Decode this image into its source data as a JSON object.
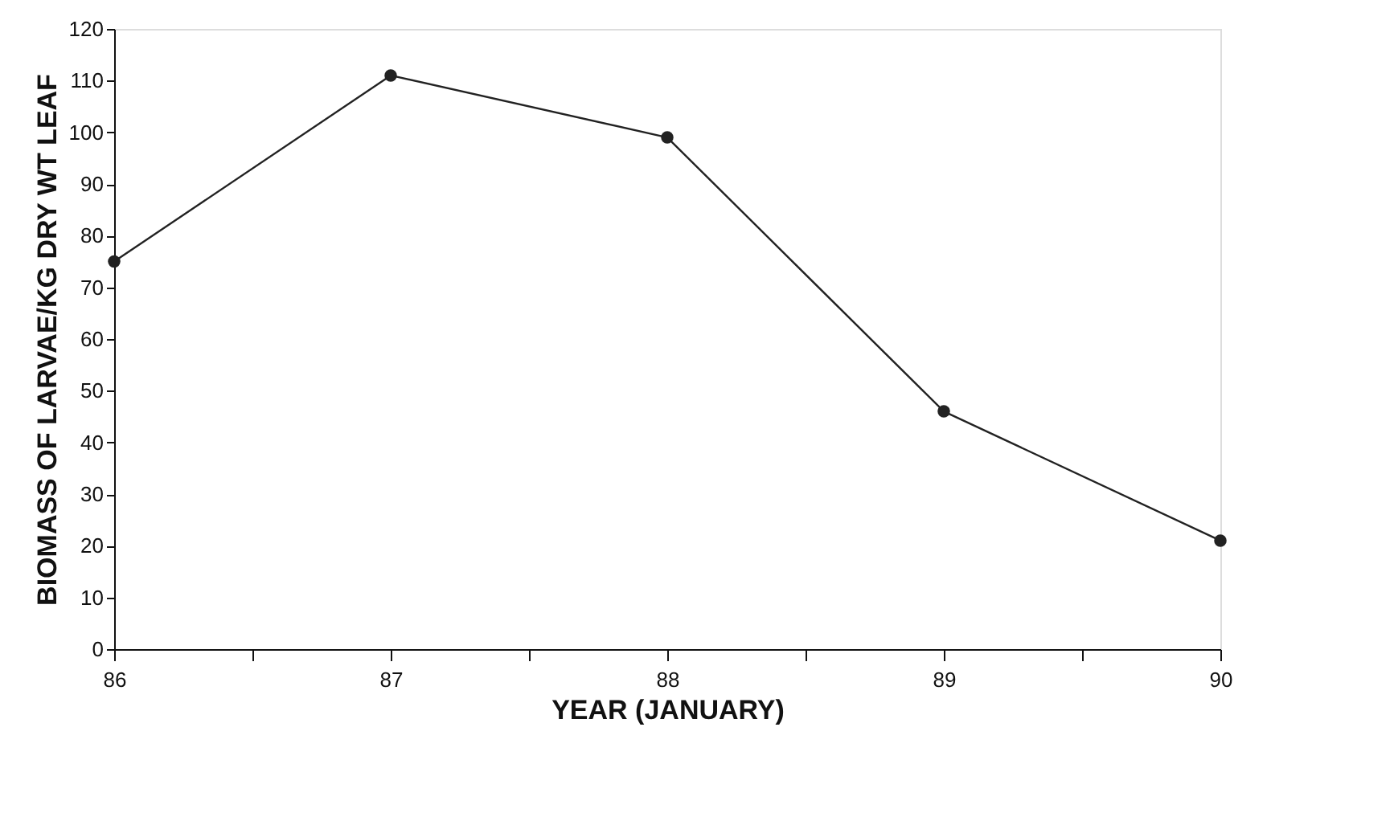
{
  "chart_data": {
    "type": "line",
    "xlabel": "YEAR (JANUARY)",
    "ylabel": "BIOMASS OF LARVAE/KG DRY WT LEAF",
    "x": [
      86,
      87,
      88,
      89,
      90
    ],
    "series": [
      {
        "color": "#222222",
        "values": [
          75,
          111,
          99,
          46,
          21
        ]
      }
    ],
    "xlim": [
      86,
      90
    ],
    "xticks": [
      86,
      {
        "value": 86.5,
        "label": null
      },
      87,
      {
        "value": 87.5,
        "label": null
      },
      88,
      {
        "value": 88.5,
        "label": null
      },
      89,
      {
        "value": 89.5,
        "label": null
      },
      90
    ],
    "ylim": [
      0,
      120
    ],
    "yticks": [
      0,
      10,
      20,
      30,
      40,
      50,
      60,
      70,
      80,
      90,
      100,
      110,
      120
    ],
    "grid": false,
    "legend": false,
    "marker": "circle",
    "line_style": "solid"
  }
}
